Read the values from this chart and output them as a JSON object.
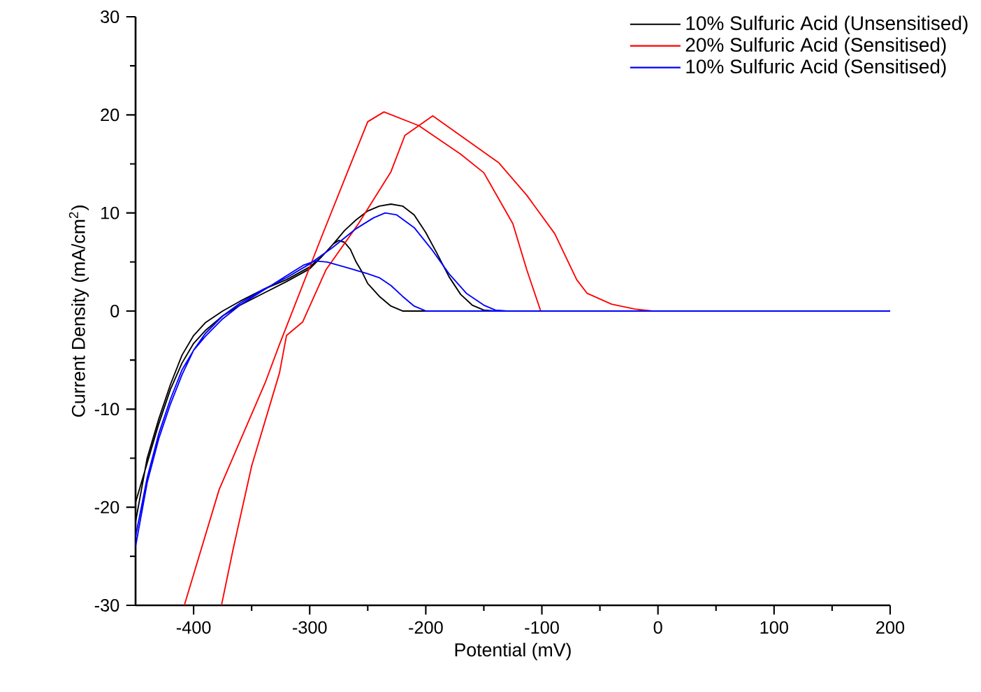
{
  "chart_data": {
    "type": "line",
    "xlabel": "Potential (mV)",
    "ylabel": "Current Density (mA/cm$^{2}$)",
    "xlim": [
      -450,
      200
    ],
    "ylim": [
      -30,
      30
    ],
    "xticks": [
      -400,
      -300,
      -200,
      -100,
      0,
      100,
      200
    ],
    "yticks": [
      -30,
      -20,
      -10,
      0,
      10,
      20,
      30
    ],
    "legend": "top right",
    "series": [
      {
        "name": "10% Sulfuric Acid (Unsensitised)",
        "color": "#000000",
        "x": [
          -450,
          -440,
          -430,
          -420,
          -410,
          -400,
          -390,
          -375,
          -360,
          -340,
          -320,
          -300,
          -290,
          -280,
          -270,
          -260,
          -250,
          -240,
          -230,
          -220,
          -210,
          -200,
          -190,
          -180,
          -170,
          -160,
          -150,
          -140,
          200,
          -220,
          -230,
          -240,
          -250,
          -255,
          -260,
          -265,
          -270,
          -275,
          -280,
          -290,
          -300,
          -320,
          -340,
          -360,
          -375,
          -390,
          -400,
          -410,
          -420,
          -430,
          -440,
          -450
        ],
        "values": [
          -21.5,
          -15,
          -11,
          -7.5,
          -4.5,
          -2.5,
          -1.2,
          0,
          1,
          2.2,
          3.2,
          4.5,
          5.5,
          6.8,
          8.2,
          9.3,
          10.2,
          10.7,
          10.9,
          10.7,
          9.8,
          8,
          5.8,
          3.5,
          1.7,
          0.6,
          0.1,
          0,
          0,
          0,
          0.5,
          1.5,
          2.8,
          4,
          5,
          6.3,
          7,
          7.2,
          6.8,
          5.5,
          4.3,
          3,
          1.8,
          0.6,
          -0.5,
          -2,
          -3.3,
          -5.3,
          -8,
          -11.5,
          -15.5,
          -19.5
        ]
      },
      {
        "name": "20% Sulfuric Acid (Sensitised)",
        "color": "#ff0000",
        "x": [
          -408,
          -378,
          -338,
          -326,
          -290,
          -266,
          -250,
          -236,
          -206,
          -170,
          -150,
          -125,
          -113,
          -101,
          200,
          -5,
          -20,
          -40,
          -61,
          -70,
          -89,
          -113,
          -137,
          -162,
          -194,
          -218,
          -230,
          -258,
          -286,
          -306,
          -320,
          -326,
          -350,
          -366,
          -376
        ],
        "values": [
          -30,
          -18.2,
          -7.2,
          -3.4,
          7.5,
          14.6,
          19.3,
          20.3,
          18.9,
          16,
          14.1,
          8.9,
          4.2,
          0,
          0,
          0,
          0.2,
          0.7,
          1.8,
          3.2,
          7.9,
          11.8,
          15.1,
          17.2,
          19.9,
          17.9,
          14.2,
          8.9,
          4.2,
          -1.1,
          -2.5,
          -6.3,
          -15.8,
          -24.3,
          -30
        ]
      },
      {
        "name": "10% Sulfuric Acid (Sensitised)",
        "color": "#0000ff",
        "x": [
          -450,
          -440,
          -430,
          -420,
          -410,
          -400,
          -390,
          -375,
          -360,
          -340,
          -320,
          -300,
          -280,
          -260,
          -245,
          -235,
          -225,
          -210,
          -195,
          -180,
          -165,
          -150,
          -140,
          -130,
          200,
          -200,
          -210,
          -220,
          -230,
          -240,
          -250,
          -270,
          -285,
          -295,
          -305,
          -320,
          -340,
          -360,
          -375,
          -390,
          -400,
          -410,
          -420,
          -430,
          -440,
          -450
        ],
        "values": [
          -24,
          -17.5,
          -13,
          -9.5,
          -6.5,
          -4,
          -2.3,
          -0.5,
          0.8,
          2.2,
          3.4,
          4.8,
          6.5,
          8.4,
          9.5,
          10,
          9.8,
          8.5,
          6.3,
          3.8,
          1.8,
          0.6,
          0.1,
          0,
          0,
          0,
          0.5,
          1.5,
          2.6,
          3.4,
          3.8,
          4.5,
          5,
          5.1,
          4.7,
          3.6,
          2.1,
          0.6,
          -0.8,
          -2.6,
          -4,
          -6,
          -9,
          -12.5,
          -17,
          -23
        ]
      }
    ]
  }
}
